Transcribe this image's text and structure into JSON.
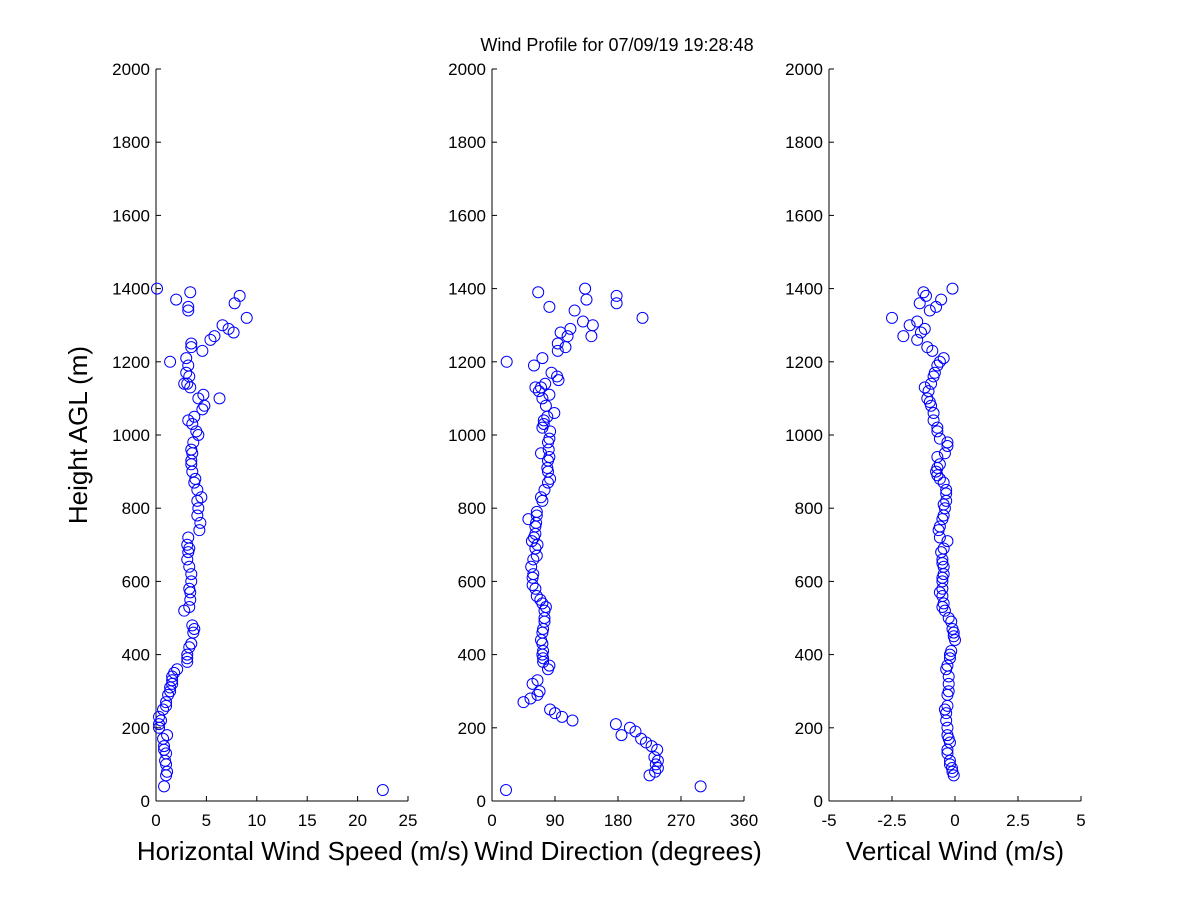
{
  "title": "Wind Profile for  07/09/19 19:28:48",
  "marker_color": "#0000ff",
  "chart_data": [
    {
      "type": "scatter",
      "xlabel": "Horizontal Wind Speed (m/s)",
      "ylabel": "Height AGL (m)",
      "xlim": [
        0,
        25
      ],
      "ylim": [
        0,
        2000
      ],
      "xticks": [
        "0",
        "5",
        "10",
        "15",
        "20",
        "25"
      ],
      "yticks": [
        "0",
        "200",
        "400",
        "600",
        "800",
        "1000",
        "1200",
        "1400",
        "1600",
        "1800",
        "2000"
      ],
      "grid": false,
      "points": [
        [
          22.5,
          30
        ],
        [
          0.8,
          40
        ],
        [
          1.0,
          70
        ],
        [
          1.1,
          80
        ],
        [
          1.0,
          100
        ],
        [
          0.9,
          110
        ],
        [
          1.0,
          130
        ],
        [
          0.8,
          140
        ],
        [
          0.8,
          150
        ],
        [
          0.7,
          170
        ],
        [
          1.1,
          180
        ],
        [
          0.3,
          200
        ],
        [
          0.3,
          210
        ],
        [
          0.5,
          220
        ],
        [
          0.3,
          230
        ],
        [
          0.7,
          250
        ],
        [
          1.0,
          260
        ],
        [
          1.0,
          270
        ],
        [
          1.2,
          290
        ],
        [
          1.4,
          300
        ],
        [
          1.4,
          310
        ],
        [
          1.6,
          320
        ],
        [
          1.6,
          330
        ],
        [
          1.6,
          340
        ],
        [
          1.8,
          350
        ],
        [
          2.1,
          360
        ],
        [
          3.1,
          380
        ],
        [
          3.1,
          390
        ],
        [
          3.1,
          400
        ],
        [
          3.3,
          420
        ],
        [
          3.5,
          430
        ],
        [
          3.7,
          460
        ],
        [
          3.8,
          470
        ],
        [
          3.6,
          480
        ],
        [
          2.8,
          520
        ],
        [
          3.3,
          530
        ],
        [
          3.4,
          550
        ],
        [
          3.4,
          570
        ],
        [
          3.3,
          580
        ],
        [
          3.5,
          600
        ],
        [
          3.5,
          620
        ],
        [
          3.3,
          640
        ],
        [
          3.1,
          660
        ],
        [
          3.2,
          680
        ],
        [
          3.3,
          690
        ],
        [
          3.1,
          700
        ],
        [
          3.2,
          720
        ],
        [
          4.3,
          740
        ],
        [
          4.4,
          760
        ],
        [
          4.1,
          780
        ],
        [
          4.2,
          800
        ],
        [
          4.1,
          820
        ],
        [
          4.5,
          830
        ],
        [
          4.1,
          850
        ],
        [
          3.8,
          870
        ],
        [
          3.9,
          880
        ],
        [
          3.6,
          900
        ],
        [
          3.5,
          920
        ],
        [
          3.5,
          930
        ],
        [
          3.6,
          950
        ],
        [
          3.5,
          960
        ],
        [
          3.7,
          980
        ],
        [
          4.2,
          1000
        ],
        [
          4.0,
          1010
        ],
        [
          3.6,
          1030
        ],
        [
          3.2,
          1040
        ],
        [
          3.8,
          1050
        ],
        [
          4.6,
          1070
        ],
        [
          4.8,
          1080
        ],
        [
          4.2,
          1100
        ],
        [
          6.3,
          1100
        ],
        [
          4.7,
          1110
        ],
        [
          3.4,
          1130
        ],
        [
          3.1,
          1140
        ],
        [
          2.8,
          1140
        ],
        [
          3.3,
          1160
        ],
        [
          3.0,
          1170
        ],
        [
          3.2,
          1190
        ],
        [
          1.4,
          1200
        ],
        [
          3.0,
          1210
        ],
        [
          4.6,
          1230
        ],
        [
          3.5,
          1240
        ],
        [
          3.5,
          1250
        ],
        [
          5.4,
          1260
        ],
        [
          5.8,
          1270
        ],
        [
          7.7,
          1280
        ],
        [
          7.2,
          1290
        ],
        [
          6.6,
          1300
        ],
        [
          9.0,
          1320
        ],
        [
          3.2,
          1340
        ],
        [
          3.2,
          1350
        ],
        [
          7.8,
          1360
        ],
        [
          2.0,
          1370
        ],
        [
          8.3,
          1380
        ],
        [
          3.4,
          1390
        ],
        [
          0.1,
          1400
        ]
      ]
    },
    {
      "type": "scatter",
      "xlabel": "Wind Direction (degrees)",
      "ylabel": "",
      "xlim": [
        0,
        360
      ],
      "ylim": [
        0,
        2000
      ],
      "xticks": [
        "0",
        "90",
        "180",
        "270",
        "360"
      ],
      "yticks": [
        "0",
        "200",
        "400",
        "600",
        "800",
        "1000",
        "1200",
        "1400",
        "1600",
        "1800",
        "2000"
      ],
      "grid": false,
      "points": [
        [
          20,
          30
        ],
        [
          298,
          40
        ],
        [
          225,
          70
        ],
        [
          233,
          80
        ],
        [
          237,
          90
        ],
        [
          234,
          100
        ],
        [
          237,
          110
        ],
        [
          232,
          120
        ],
        [
          236,
          140
        ],
        [
          228,
          150
        ],
        [
          220,
          160
        ],
        [
          213,
          170
        ],
        [
          185,
          180
        ],
        [
          205,
          190
        ],
        [
          197,
          200
        ],
        [
          177,
          210
        ],
        [
          115,
          220
        ],
        [
          100,
          230
        ],
        [
          90,
          240
        ],
        [
          83,
          250
        ],
        [
          45,
          270
        ],
        [
          55,
          280
        ],
        [
          65,
          290
        ],
        [
          68,
          300
        ],
        [
          58,
          320
        ],
        [
          65,
          330
        ],
        [
          80,
          360
        ],
        [
          82,
          370
        ],
        [
          73,
          380
        ],
        [
          73,
          390
        ],
        [
          72,
          400
        ],
        [
          73,
          410
        ],
        [
          72,
          430
        ],
        [
          70,
          440
        ],
        [
          72,
          460
        ],
        [
          73,
          470
        ],
        [
          75,
          490
        ],
        [
          75,
          500
        ],
        [
          75,
          520
        ],
        [
          77,
          530
        ],
        [
          72,
          540
        ],
        [
          69,
          550
        ],
        [
          64,
          560
        ],
        [
          62,
          580
        ],
        [
          58,
          590
        ],
        [
          58,
          610
        ],
        [
          59,
          620
        ],
        [
          56,
          640
        ],
        [
          59,
          660
        ],
        [
          64,
          670
        ],
        [
          62,
          690
        ],
        [
          65,
          700
        ],
        [
          57,
          710
        ],
        [
          60,
          720
        ],
        [
          62,
          730
        ],
        [
          62,
          750
        ],
        [
          63,
          760
        ],
        [
          52,
          770
        ],
        [
          64,
          780
        ],
        [
          64,
          790
        ],
        [
          72,
          820
        ],
        [
          70,
          830
        ],
        [
          75,
          850
        ],
        [
          80,
          870
        ],
        [
          83,
          880
        ],
        [
          80,
          900
        ],
        [
          79,
          910
        ],
        [
          80,
          930
        ],
        [
          82,
          940
        ],
        [
          70,
          950
        ],
        [
          81,
          960
        ],
        [
          80,
          980
        ],
        [
          82,
          990
        ],
        [
          83,
          1010
        ],
        [
          72,
          1020
        ],
        [
          74,
          1030
        ],
        [
          74,
          1040
        ],
        [
          79,
          1050
        ],
        [
          89,
          1060
        ],
        [
          77,
          1080
        ],
        [
          72,
          1100
        ],
        [
          82,
          1110
        ],
        [
          67,
          1120
        ],
        [
          70,
          1130
        ],
        [
          62,
          1130
        ],
        [
          76,
          1140
        ],
        [
          95,
          1150
        ],
        [
          93,
          1160
        ],
        [
          85,
          1170
        ],
        [
          60,
          1190
        ],
        [
          21,
          1200
        ],
        [
          72,
          1210
        ],
        [
          94,
          1230
        ],
        [
          105,
          1240
        ],
        [
          94,
          1250
        ],
        [
          108,
          1270
        ],
        [
          142,
          1270
        ],
        [
          112,
          1290
        ],
        [
          98,
          1280
        ],
        [
          144,
          1300
        ],
        [
          130,
          1310
        ],
        [
          215,
          1320
        ],
        [
          82,
          1350
        ],
        [
          118,
          1340
        ],
        [
          178,
          1360
        ],
        [
          135,
          1370
        ],
        [
          178,
          1380
        ],
        [
          66,
          1390
        ],
        [
          133,
          1400
        ]
      ]
    },
    {
      "type": "scatter",
      "xlabel": "Vertical Wind (m/s)",
      "ylabel": "",
      "xlim": [
        -5,
        5
      ],
      "ylim": [
        0,
        2000
      ],
      "xticks": [
        "-5",
        "-2.5",
        "0",
        "2.5",
        "5"
      ],
      "yticks": [
        "0",
        "200",
        "400",
        "600",
        "800",
        "1000",
        "1200",
        "1400",
        "1600",
        "1800",
        "2000"
      ],
      "grid": false,
      "points": [
        [
          -0.05,
          70
        ],
        [
          -0.1,
          80
        ],
        [
          -0.12,
          90
        ],
        [
          -0.2,
          100
        ],
        [
          -0.2,
          110
        ],
        [
          -0.3,
          130
        ],
        [
          -0.3,
          140
        ],
        [
          -0.2,
          160
        ],
        [
          -0.25,
          170
        ],
        [
          -0.3,
          180
        ],
        [
          -0.3,
          200
        ],
        [
          -0.35,
          220
        ],
        [
          -0.35,
          240
        ],
        [
          -0.4,
          250
        ],
        [
          -0.3,
          260
        ],
        [
          -0.3,
          290
        ],
        [
          -0.25,
          300
        ],
        [
          -0.25,
          320
        ],
        [
          -0.25,
          340
        ],
        [
          -0.35,
          360
        ],
        [
          -0.3,
          370
        ],
        [
          -0.2,
          390
        ],
        [
          -0.2,
          400
        ],
        [
          -0.15,
          410
        ],
        [
          0.0,
          440
        ],
        [
          -0.05,
          450
        ],
        [
          -0.05,
          460
        ],
        [
          -0.1,
          470
        ],
        [
          -0.15,
          490
        ],
        [
          -0.25,
          500
        ],
        [
          -0.4,
          520
        ],
        [
          -0.5,
          530
        ],
        [
          -0.45,
          540
        ],
        [
          -0.5,
          560
        ],
        [
          -0.6,
          570
        ],
        [
          -0.5,
          580
        ],
        [
          -0.5,
          600
        ],
        [
          -0.5,
          610
        ],
        [
          -0.45,
          620
        ],
        [
          -0.45,
          640
        ],
        [
          -0.5,
          650
        ],
        [
          -0.5,
          660
        ],
        [
          -0.55,
          680
        ],
        [
          -0.45,
          690
        ],
        [
          -0.3,
          710
        ],
        [
          -0.6,
          720
        ],
        [
          -0.65,
          740
        ],
        [
          -0.6,
          750
        ],
        [
          -0.5,
          770
        ],
        [
          -0.45,
          780
        ],
        [
          -0.4,
          800
        ],
        [
          -0.45,
          810
        ],
        [
          -0.35,
          820
        ],
        [
          -0.35,
          840
        ],
        [
          -0.35,
          850
        ],
        [
          -0.45,
          870
        ],
        [
          -0.6,
          880
        ],
        [
          -0.7,
          890
        ],
        [
          -0.75,
          900
        ],
        [
          -0.7,
          910
        ],
        [
          -0.6,
          920
        ],
        [
          -0.7,
          940
        ],
        [
          -0.4,
          950
        ],
        [
          -0.3,
          970
        ],
        [
          -0.3,
          980
        ],
        [
          -0.6,
          990
        ],
        [
          -0.7,
          1010
        ],
        [
          -0.7,
          1020
        ],
        [
          -0.85,
          1040
        ],
        [
          -0.85,
          1060
        ],
        [
          -0.95,
          1080
        ],
        [
          -1.0,
          1090
        ],
        [
          -1.1,
          1100
        ],
        [
          -1.05,
          1120
        ],
        [
          -1.2,
          1130
        ],
        [
          -0.95,
          1140
        ],
        [
          -0.85,
          1160
        ],
        [
          -0.8,
          1170
        ],
        [
          -0.7,
          1190
        ],
        [
          -0.6,
          1200
        ],
        [
          -0.45,
          1210
        ],
        [
          -0.9,
          1230
        ],
        [
          -1.1,
          1240
        ],
        [
          -1.5,
          1260
        ],
        [
          -2.05,
          1270
        ],
        [
          -1.35,
          1280
        ],
        [
          -1.2,
          1290
        ],
        [
          -1.8,
          1300
        ],
        [
          -1.5,
          1310
        ],
        [
          -2.5,
          1320
        ],
        [
          -1.0,
          1340
        ],
        [
          -0.75,
          1350
        ],
        [
          -1.4,
          1360
        ],
        [
          -0.55,
          1370
        ],
        [
          -1.15,
          1380
        ],
        [
          -1.25,
          1390
        ],
        [
          -0.1,
          1400
        ]
      ]
    }
  ]
}
